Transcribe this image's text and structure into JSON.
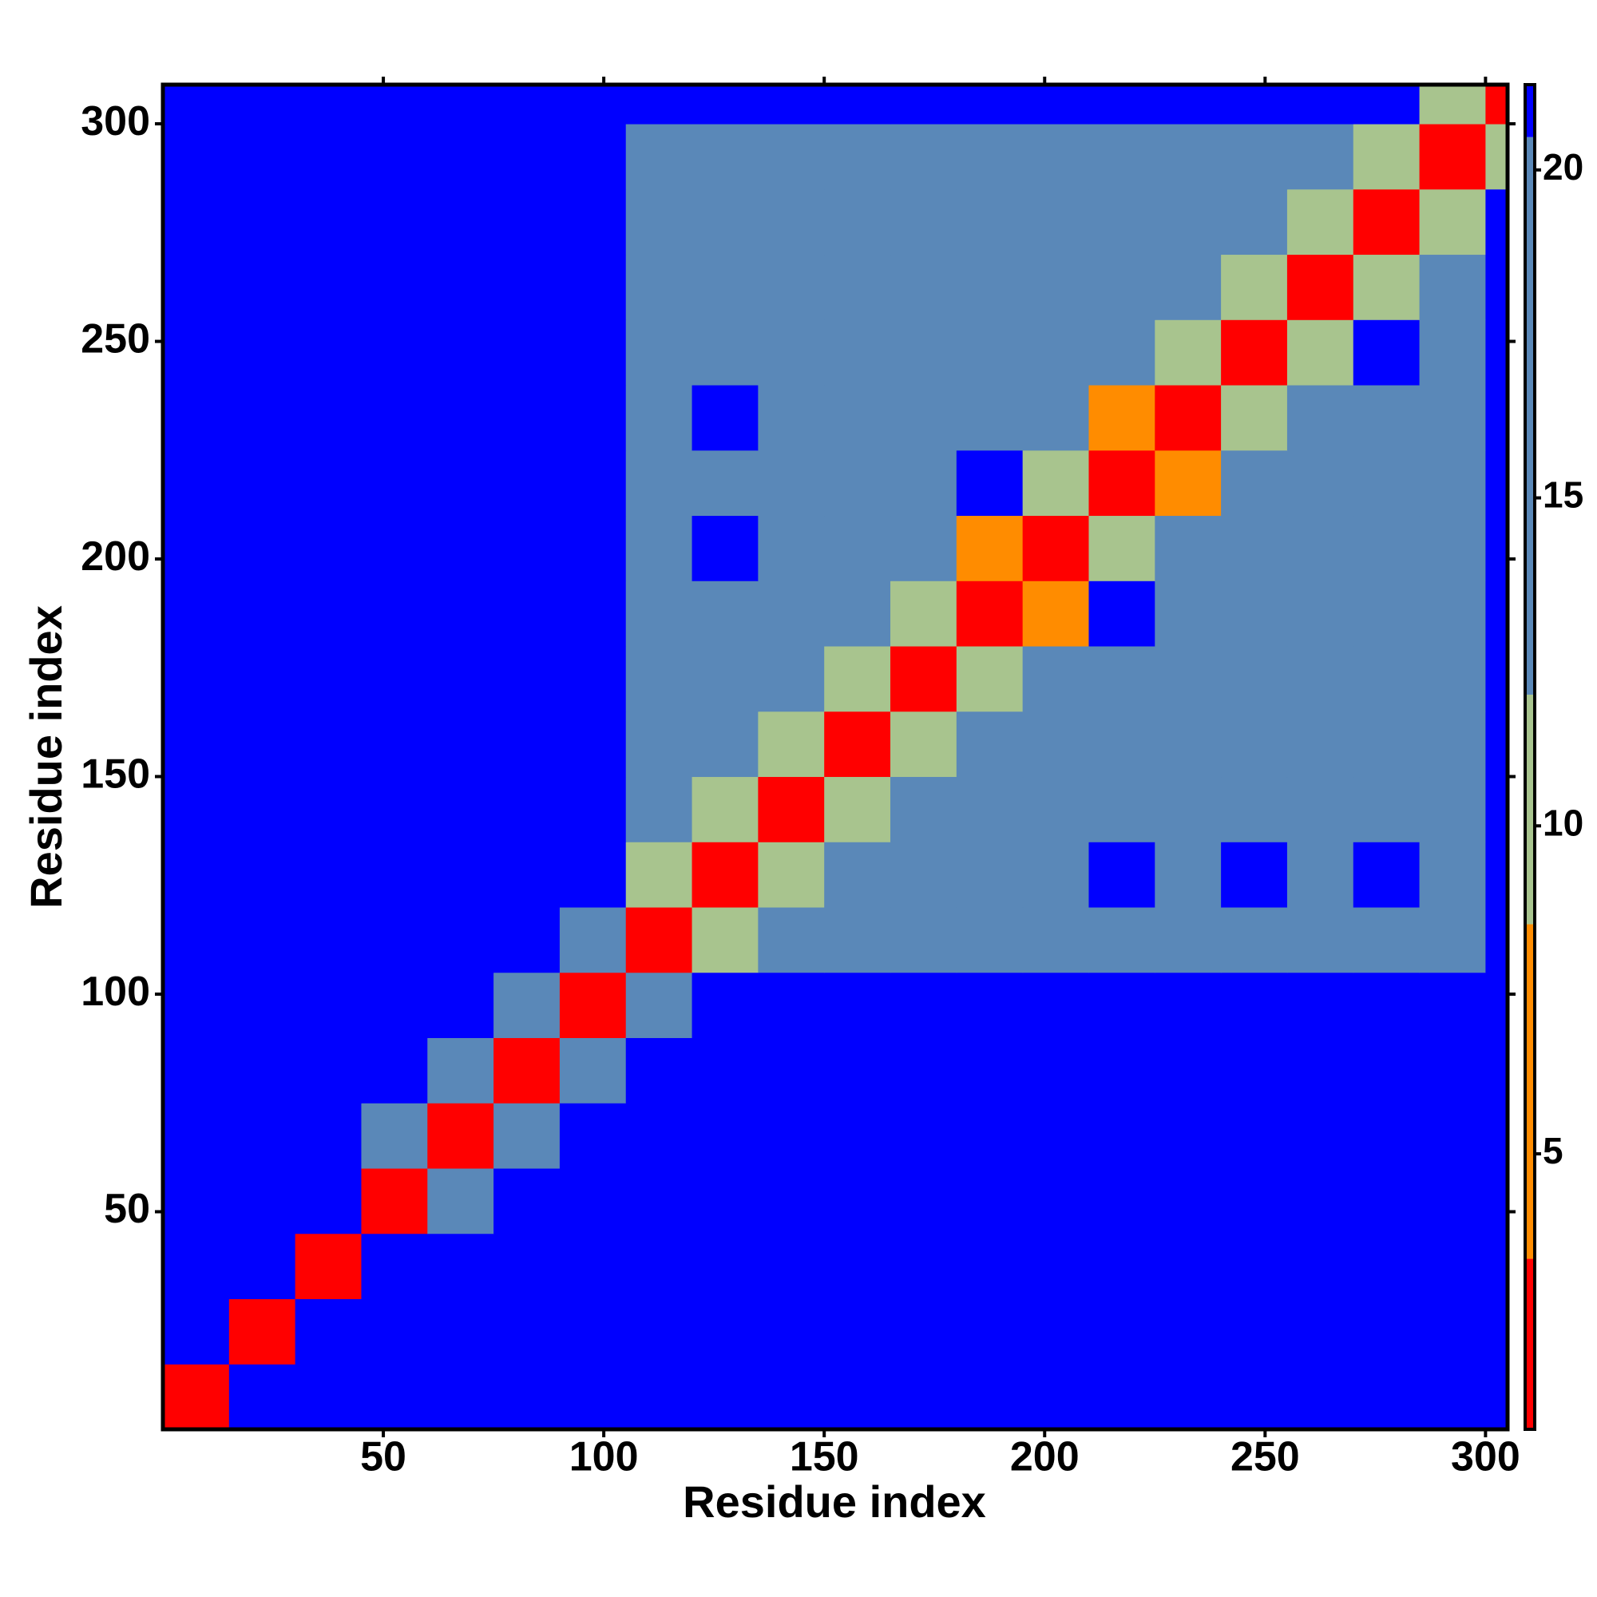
{
  "chart_data": {
    "type": "heatmap",
    "x_label": "Residue index",
    "y_label": "Residue index",
    "xlim": [
      0,
      305
    ],
    "ylim": [
      0,
      309
    ],
    "xticks": [
      50,
      100,
      150,
      200,
      250,
      300
    ],
    "yticks": [
      50,
      100,
      150,
      200,
      250,
      300
    ],
    "x": [
      7.5,
      22.5,
      37.5,
      52.5,
      67.5,
      82.5,
      97.5,
      112.5,
      127.5,
      142.5,
      157.5,
      172.5,
      187.5,
      202.5,
      217.5,
      232.5,
      247.5,
      262.5,
      277.5,
      292.5,
      307.5
    ],
    "y": [
      7.5,
      22.5,
      37.5,
      52.5,
      67.5,
      82.5,
      97.5,
      112.5,
      127.5,
      142.5,
      157.5,
      172.5,
      187.5,
      202.5,
      217.5,
      232.5,
      247.5,
      262.5,
      277.5,
      292.5,
      307.5
    ],
    "z": [
      [
        2,
        21,
        21,
        21,
        21,
        21,
        21,
        21,
        21,
        21,
        21,
        21,
        21,
        21,
        21,
        21,
        21,
        21,
        21,
        21,
        21
      ],
      [
        21,
        2,
        21,
        21,
        21,
        21,
        21,
        21,
        21,
        21,
        21,
        21,
        21,
        21,
        21,
        21,
        21,
        21,
        21,
        21,
        21
      ],
      [
        21,
        21,
        2,
        21,
        21,
        21,
        21,
        21,
        21,
        21,
        21,
        21,
        21,
        21,
        21,
        21,
        21,
        21,
        21,
        21,
        21
      ],
      [
        21,
        21,
        21,
        2,
        12,
        21,
        21,
        21,
        21,
        21,
        21,
        21,
        21,
        21,
        21,
        21,
        21,
        21,
        21,
        21,
        21
      ],
      [
        21,
        21,
        21,
        12,
        2,
        12,
        21,
        21,
        21,
        21,
        21,
        21,
        21,
        21,
        21,
        21,
        21,
        21,
        21,
        21,
        21
      ],
      [
        21,
        21,
        21,
        21,
        12,
        2,
        12,
        21,
        21,
        21,
        21,
        21,
        21,
        21,
        21,
        21,
        21,
        21,
        21,
        21,
        21
      ],
      [
        21,
        21,
        21,
        21,
        21,
        12,
        2,
        12,
        21,
        21,
        21,
        21,
        21,
        21,
        21,
        21,
        21,
        21,
        21,
        21,
        21
      ],
      [
        21,
        21,
        21,
        21,
        21,
        21,
        12,
        2,
        9,
        16,
        16,
        16,
        16,
        16,
        16,
        16,
        16,
        16,
        16,
        16,
        21
      ],
      [
        21,
        21,
        21,
        21,
        21,
        21,
        21,
        9,
        2,
        9,
        16,
        16,
        16,
        16,
        21,
        16,
        21,
        16,
        21,
        16,
        21
      ],
      [
        21,
        21,
        21,
        21,
        21,
        21,
        21,
        16,
        9,
        2,
        9,
        16,
        16,
        16,
        16,
        16,
        16,
        16,
        16,
        16,
        21
      ],
      [
        21,
        21,
        21,
        21,
        21,
        21,
        21,
        16,
        16,
        9,
        2,
        9,
        16,
        16,
        16,
        16,
        16,
        16,
        16,
        16,
        21
      ],
      [
        21,
        21,
        21,
        21,
        21,
        21,
        21,
        16,
        16,
        16,
        9,
        2,
        9,
        16,
        16,
        16,
        16,
        16,
        16,
        16,
        21
      ],
      [
        21,
        21,
        21,
        21,
        21,
        21,
        21,
        16,
        16,
        16,
        16,
        9,
        2,
        7,
        21,
        16,
        16,
        16,
        16,
        16,
        21
      ],
      [
        21,
        21,
        21,
        21,
        21,
        21,
        21,
        16,
        21,
        16,
        16,
        16,
        7,
        2,
        9,
        16,
        16,
        16,
        16,
        16,
        21
      ],
      [
        21,
        21,
        21,
        21,
        21,
        21,
        21,
        16,
        16,
        16,
        16,
        16,
        21,
        9,
        2,
        7,
        16,
        16,
        16,
        16,
        21
      ],
      [
        21,
        21,
        21,
        21,
        21,
        21,
        21,
        16,
        21,
        16,
        16,
        16,
        16,
        16,
        7,
        2,
        9,
        16,
        16,
        16,
        21
      ],
      [
        21,
        21,
        21,
        21,
        21,
        21,
        21,
        16,
        16,
        16,
        16,
        16,
        16,
        16,
        16,
        9,
        2,
        9,
        21,
        16,
        21
      ],
      [
        21,
        21,
        21,
        21,
        21,
        21,
        21,
        16,
        16,
        16,
        16,
        16,
        16,
        16,
        16,
        16,
        9,
        2,
        9,
        16,
        21
      ],
      [
        21,
        21,
        21,
        21,
        21,
        21,
        21,
        16,
        16,
        16,
        16,
        16,
        16,
        16,
        16,
        16,
        16,
        9,
        2,
        9,
        21
      ],
      [
        21,
        21,
        21,
        21,
        21,
        21,
        21,
        16,
        16,
        16,
        16,
        16,
        16,
        16,
        16,
        16,
        16,
        16,
        9,
        2,
        9
      ],
      [
        21,
        21,
        21,
        21,
        21,
        21,
        21,
        21,
        21,
        21,
        21,
        21,
        21,
        21,
        21,
        21,
        21,
        21,
        21,
        9,
        2
      ]
    ],
    "zlim": [
      0.8,
      21.3
    ],
    "zticks": [
      5,
      10,
      15,
      20
    ],
    "color_bounds": [
      3.4,
      8.5,
      12,
      20.5
    ],
    "colors": [
      "#ff0000",
      "#ff8c00",
      "#a8c48e",
      "#5a88b8",
      "#0000ff"
    ]
  }
}
